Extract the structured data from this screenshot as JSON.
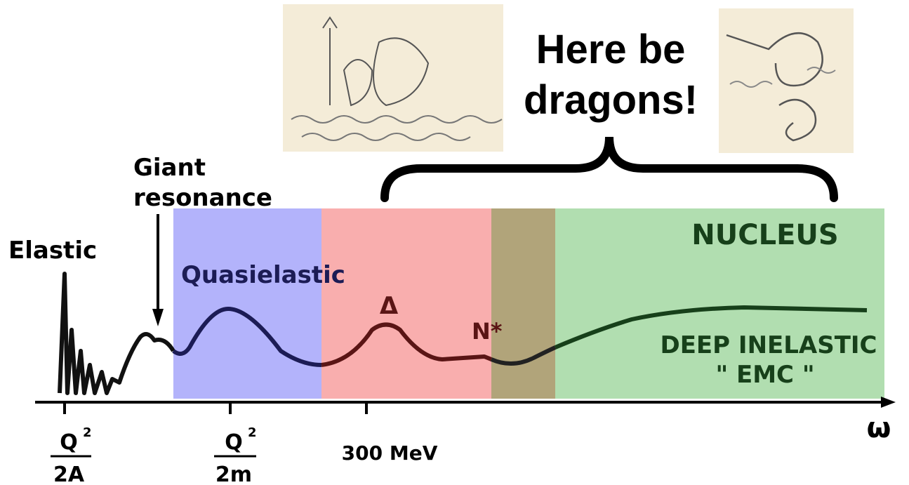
{
  "title": {
    "lines": [
      "Here be",
      "dragons!"
    ]
  },
  "labels": {
    "giant_resonance": [
      "Giant",
      "resonance"
    ],
    "elastic": "Elastic",
    "quasielastic": "Quasielastic",
    "delta": "Δ",
    "n_star": "N*",
    "nucleus": "NUCLEUS",
    "deep_inelastic": "DEEP  INELASTIC",
    "emc": "\" EMC \""
  },
  "axis": {
    "ticks": [
      {
        "numerator": "Q",
        "exponent": "2",
        "denominator": "2A"
      },
      {
        "numerator": "Q",
        "exponent": "2",
        "denominator": "2m"
      },
      {
        "text": "300 MeV"
      }
    ],
    "variable": "ω"
  }
}
